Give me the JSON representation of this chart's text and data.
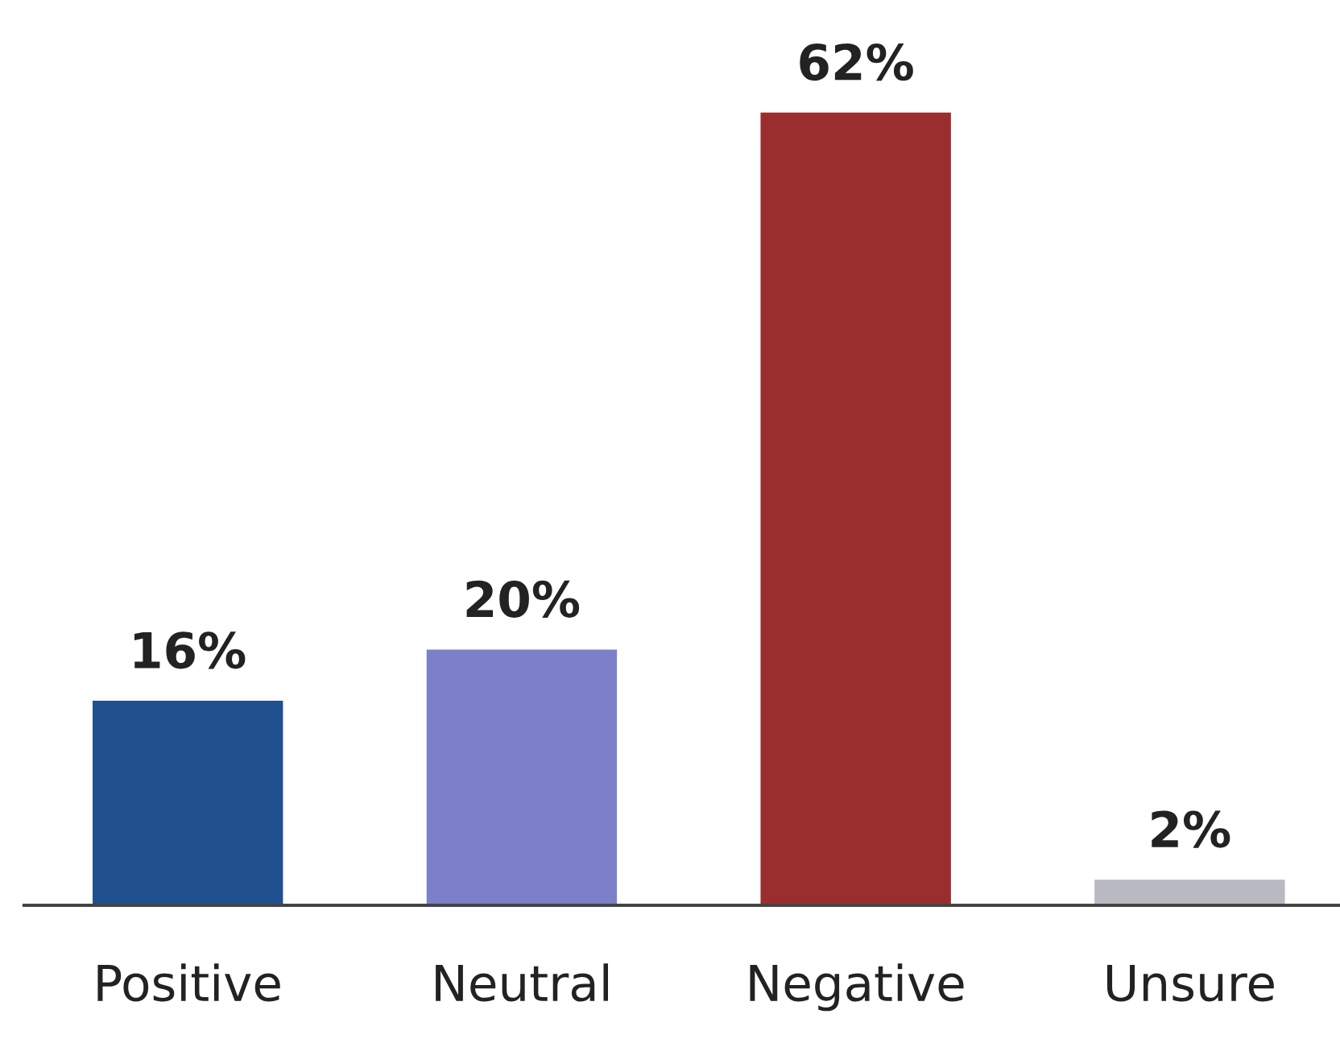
{
  "chart_data": {
    "type": "bar",
    "categories": [
      "Positive",
      "Neutral",
      "Negative",
      "Unsure"
    ],
    "values": [
      16,
      20,
      62,
      2
    ],
    "colors": [
      "#21508f",
      "#7c80c9",
      "#9a2d2e",
      "#b9b9c2"
    ],
    "value_labels": [
      "16%",
      "20%",
      "62%",
      "2%"
    ],
    "grid": false,
    "legend": false
  }
}
